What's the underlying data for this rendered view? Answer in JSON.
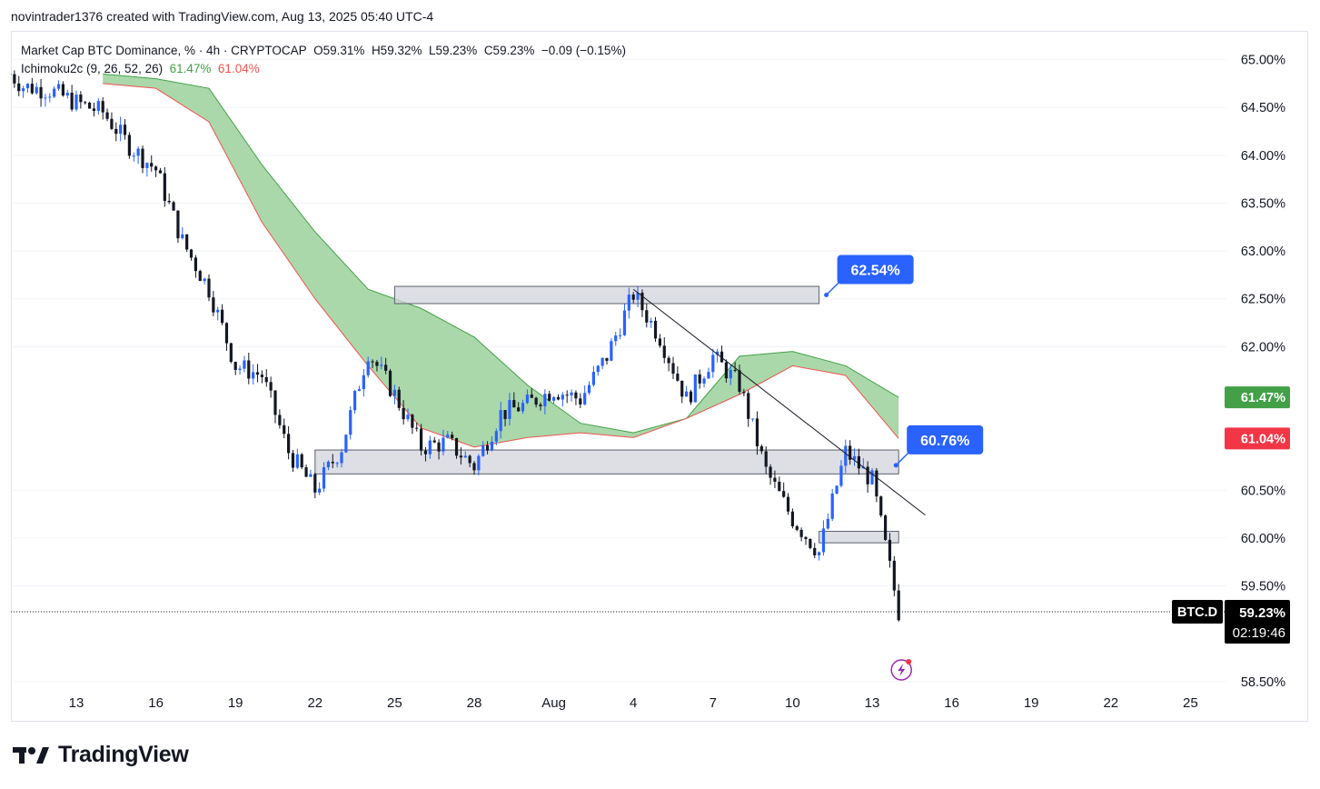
{
  "header": {
    "publish_line": "novintrader1376 created with TradingView.com, Aug 13, 2025 05:40 UTC-4"
  },
  "legend": {
    "symbol_line": "Market Cap BTC Dominance, % · 4h · CRYPTOCAP",
    "ohlc": {
      "open": "O59.31%",
      "high": "H59.32%",
      "low": "L59.23%",
      "close": "C59.23%",
      "change": "−0.09 (−0.15%)"
    },
    "indicator_name": "Ichimoku2c (9, 26, 52, 26)",
    "indicator_value_1": "61.47%",
    "indicator_value_2": "61.04%"
  },
  "brand": {
    "name": "TradingView"
  },
  "colors": {
    "up_candle": "#2962ff",
    "down_candle": "#131722",
    "cloud_fill": "#a5d6a7",
    "cloud_upper_line": "#43a047",
    "cloud_lower_line": "#ef5350",
    "callout": "#2962ff",
    "badge_green": "#43a047",
    "badge_red": "#f23645",
    "zone_fill": "#d1d4dc",
    "grid": "#f0f3fa"
  },
  "chart_data": {
    "type": "candlestick",
    "symbol": "BTC.D",
    "interval": "4h",
    "x_tick_labels": [
      "13",
      "16",
      "19",
      "22",
      "25",
      "28",
      "Aug",
      "4",
      "7",
      "10",
      "13",
      "16",
      "19",
      "22",
      "25"
    ],
    "y_tick_labels": [
      "65.00%",
      "64.50%",
      "64.00%",
      "63.50%",
      "63.00%",
      "62.50%",
      "62.00%",
      "60.50%",
      "60.00%",
      "59.50%",
      "58.50%"
    ],
    "y_ticks": [
      65.0,
      64.5,
      64.0,
      63.5,
      63.0,
      62.5,
      62.0,
      60.5,
      60.0,
      59.5,
      58.5
    ],
    "ylim": [
      58.27,
      65.3
    ],
    "close_path": [
      [
        "Jul 10 12:00",
        64.85
      ],
      [
        "Jul 11",
        64.72
      ],
      [
        "Jul 12",
        64.68
      ],
      [
        "Jul 13",
        64.55
      ],
      [
        "Jul 14",
        64.45
      ],
      [
        "Jul 15",
        64.1
      ],
      [
        "Jul 16",
        63.85
      ],
      [
        "Jul 17",
        63.1
      ],
      [
        "Jul 18",
        62.6
      ],
      [
        "Jul 19",
        61.8
      ],
      [
        "Jul 20",
        61.7
      ],
      [
        "Jul 21",
        60.9
      ],
      [
        "Jul 22",
        60.5
      ],
      [
        "Jul 23",
        60.95
      ],
      [
        "Jul 24",
        61.95
      ],
      [
        "Jul 25",
        61.5
      ],
      [
        "Jul 26",
        60.95
      ],
      [
        "Jul 27",
        61.0
      ],
      [
        "Jul 28",
        60.75
      ],
      [
        "Jul 29",
        61.3
      ],
      [
        "Jul 30",
        61.4
      ],
      [
        "Jul 31",
        61.55
      ],
      [
        "Aug 1",
        61.45
      ],
      [
        "Aug 2",
        61.9
      ],
      [
        "Aug 3",
        62.55
      ],
      [
        "Aug 4",
        62.1
      ],
      [
        "Aug 5",
        61.45
      ],
      [
        "Aug 6",
        61.9
      ],
      [
        "Aug 7",
        61.6
      ],
      [
        "Aug 8",
        60.7
      ],
      [
        "Aug 9",
        60.2
      ],
      [
        "Aug 10",
        59.85
      ],
      [
        "Aug 11",
        60.9
      ],
      [
        "Aug 12",
        60.6
      ],
      [
        "Aug 13",
        59.23
      ]
    ],
    "ichimoku_cloud": {
      "upper": [
        [
          "Jul 14",
          64.85
        ],
        [
          "Jul 16",
          64.8
        ],
        [
          "Jul 18",
          64.7
        ],
        [
          "Jul 20",
          63.9
        ],
        [
          "Jul 22",
          63.2
        ],
        [
          "Jul 24",
          62.6
        ],
        [
          "Jul 26",
          62.4
        ],
        [
          "Jul 28",
          62.1
        ],
        [
          "Jul 30",
          61.6
        ],
        [
          "Aug 1",
          61.2
        ],
        [
          "Aug 3",
          61.1
        ],
        [
          "Aug 5",
          61.25
        ],
        [
          "Aug 7",
          61.9
        ],
        [
          "Aug 9",
          61.95
        ],
        [
          "Aug 11",
          61.8
        ],
        [
          "Aug 13",
          61.47
        ]
      ],
      "lower": [
        [
          "Jul 14",
          64.75
        ],
        [
          "Jul 16",
          64.7
        ],
        [
          "Jul 18",
          64.35
        ],
        [
          "Jul 20",
          63.3
        ],
        [
          "Jul 22",
          62.5
        ],
        [
          "Jul 24",
          61.8
        ],
        [
          "Jul 26",
          61.15
        ],
        [
          "Jul 28",
          60.95
        ],
        [
          "Jul 30",
          61.05
        ],
        [
          "Aug 1",
          61.1
        ],
        [
          "Aug 3",
          61.05
        ],
        [
          "Aug 5",
          61.25
        ],
        [
          "Aug 7",
          61.5
        ],
        [
          "Aug 9",
          61.8
        ],
        [
          "Aug 11",
          61.7
        ],
        [
          "Aug 13",
          61.04
        ]
      ]
    },
    "zones": [
      {
        "top": 62.63,
        "bottom": 62.45,
        "from": "Jul 25",
        "to": "Aug 10"
      },
      {
        "top": 60.92,
        "bottom": 60.67,
        "from": "Jul 22",
        "to": "Aug 13"
      },
      {
        "top": 60.07,
        "bottom": 59.95,
        "from": "Aug 10",
        "to": "Aug 13"
      }
    ],
    "trendline": {
      "from": [
        "Aug 3",
        62.6
      ],
      "to": [
        "Aug 14",
        60.24
      ]
    },
    "price_callouts": [
      {
        "label": "62.54%",
        "value": 62.54
      },
      {
        "label": "60.76%",
        "value": 60.76
      }
    ],
    "axis_badges": [
      {
        "label": "61.47%",
        "value": 61.47,
        "color": "#43a047"
      },
      {
        "label": "61.04%",
        "value": 61.04,
        "color": "#f23645"
      }
    ],
    "last_price": {
      "symbol": "BTC.D",
      "label": "59.23%",
      "value": 59.23,
      "countdown": "02:19:46"
    }
  }
}
